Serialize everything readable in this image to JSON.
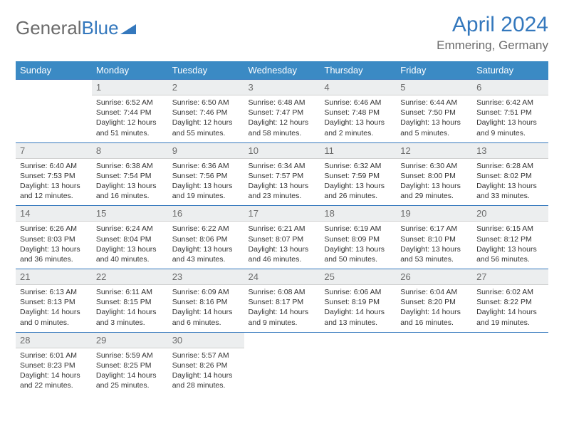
{
  "logo": {
    "text1": "General",
    "text2": "Blue"
  },
  "title": "April 2024",
  "location": "Emmering, Germany",
  "colors": {
    "header_bg": "#3b8ac4",
    "accent": "#3478bd",
    "daynum_bg": "#eceeef",
    "text_gray": "#6b6b6b"
  },
  "weekdays": [
    "Sunday",
    "Monday",
    "Tuesday",
    "Wednesday",
    "Thursday",
    "Friday",
    "Saturday"
  ],
  "weeks": [
    {
      "nums": [
        "",
        "1",
        "2",
        "3",
        "4",
        "5",
        "6"
      ],
      "cells": [
        null,
        {
          "sr": "Sunrise: 6:52 AM",
          "ss": "Sunset: 7:44 PM",
          "d1": "Daylight: 12 hours",
          "d2": "and 51 minutes."
        },
        {
          "sr": "Sunrise: 6:50 AM",
          "ss": "Sunset: 7:46 PM",
          "d1": "Daylight: 12 hours",
          "d2": "and 55 minutes."
        },
        {
          "sr": "Sunrise: 6:48 AM",
          "ss": "Sunset: 7:47 PM",
          "d1": "Daylight: 12 hours",
          "d2": "and 58 minutes."
        },
        {
          "sr": "Sunrise: 6:46 AM",
          "ss": "Sunset: 7:48 PM",
          "d1": "Daylight: 13 hours",
          "d2": "and 2 minutes."
        },
        {
          "sr": "Sunrise: 6:44 AM",
          "ss": "Sunset: 7:50 PM",
          "d1": "Daylight: 13 hours",
          "d2": "and 5 minutes."
        },
        {
          "sr": "Sunrise: 6:42 AM",
          "ss": "Sunset: 7:51 PM",
          "d1": "Daylight: 13 hours",
          "d2": "and 9 minutes."
        }
      ]
    },
    {
      "nums": [
        "7",
        "8",
        "9",
        "10",
        "11",
        "12",
        "13"
      ],
      "cells": [
        {
          "sr": "Sunrise: 6:40 AM",
          "ss": "Sunset: 7:53 PM",
          "d1": "Daylight: 13 hours",
          "d2": "and 12 minutes."
        },
        {
          "sr": "Sunrise: 6:38 AM",
          "ss": "Sunset: 7:54 PM",
          "d1": "Daylight: 13 hours",
          "d2": "and 16 minutes."
        },
        {
          "sr": "Sunrise: 6:36 AM",
          "ss": "Sunset: 7:56 PM",
          "d1": "Daylight: 13 hours",
          "d2": "and 19 minutes."
        },
        {
          "sr": "Sunrise: 6:34 AM",
          "ss": "Sunset: 7:57 PM",
          "d1": "Daylight: 13 hours",
          "d2": "and 23 minutes."
        },
        {
          "sr": "Sunrise: 6:32 AM",
          "ss": "Sunset: 7:59 PM",
          "d1": "Daylight: 13 hours",
          "d2": "and 26 minutes."
        },
        {
          "sr": "Sunrise: 6:30 AM",
          "ss": "Sunset: 8:00 PM",
          "d1": "Daylight: 13 hours",
          "d2": "and 29 minutes."
        },
        {
          "sr": "Sunrise: 6:28 AM",
          "ss": "Sunset: 8:02 PM",
          "d1": "Daylight: 13 hours",
          "d2": "and 33 minutes."
        }
      ]
    },
    {
      "nums": [
        "14",
        "15",
        "16",
        "17",
        "18",
        "19",
        "20"
      ],
      "cells": [
        {
          "sr": "Sunrise: 6:26 AM",
          "ss": "Sunset: 8:03 PM",
          "d1": "Daylight: 13 hours",
          "d2": "and 36 minutes."
        },
        {
          "sr": "Sunrise: 6:24 AM",
          "ss": "Sunset: 8:04 PM",
          "d1": "Daylight: 13 hours",
          "d2": "and 40 minutes."
        },
        {
          "sr": "Sunrise: 6:22 AM",
          "ss": "Sunset: 8:06 PM",
          "d1": "Daylight: 13 hours",
          "d2": "and 43 minutes."
        },
        {
          "sr": "Sunrise: 6:21 AM",
          "ss": "Sunset: 8:07 PM",
          "d1": "Daylight: 13 hours",
          "d2": "and 46 minutes."
        },
        {
          "sr": "Sunrise: 6:19 AM",
          "ss": "Sunset: 8:09 PM",
          "d1": "Daylight: 13 hours",
          "d2": "and 50 minutes."
        },
        {
          "sr": "Sunrise: 6:17 AM",
          "ss": "Sunset: 8:10 PM",
          "d1": "Daylight: 13 hours",
          "d2": "and 53 minutes."
        },
        {
          "sr": "Sunrise: 6:15 AM",
          "ss": "Sunset: 8:12 PM",
          "d1": "Daylight: 13 hours",
          "d2": "and 56 minutes."
        }
      ]
    },
    {
      "nums": [
        "21",
        "22",
        "23",
        "24",
        "25",
        "26",
        "27"
      ],
      "cells": [
        {
          "sr": "Sunrise: 6:13 AM",
          "ss": "Sunset: 8:13 PM",
          "d1": "Daylight: 14 hours",
          "d2": "and 0 minutes."
        },
        {
          "sr": "Sunrise: 6:11 AM",
          "ss": "Sunset: 8:15 PM",
          "d1": "Daylight: 14 hours",
          "d2": "and 3 minutes."
        },
        {
          "sr": "Sunrise: 6:09 AM",
          "ss": "Sunset: 8:16 PM",
          "d1": "Daylight: 14 hours",
          "d2": "and 6 minutes."
        },
        {
          "sr": "Sunrise: 6:08 AM",
          "ss": "Sunset: 8:17 PM",
          "d1": "Daylight: 14 hours",
          "d2": "and 9 minutes."
        },
        {
          "sr": "Sunrise: 6:06 AM",
          "ss": "Sunset: 8:19 PM",
          "d1": "Daylight: 14 hours",
          "d2": "and 13 minutes."
        },
        {
          "sr": "Sunrise: 6:04 AM",
          "ss": "Sunset: 8:20 PM",
          "d1": "Daylight: 14 hours",
          "d2": "and 16 minutes."
        },
        {
          "sr": "Sunrise: 6:02 AM",
          "ss": "Sunset: 8:22 PM",
          "d1": "Daylight: 14 hours",
          "d2": "and 19 minutes."
        }
      ]
    },
    {
      "nums": [
        "28",
        "29",
        "30",
        "",
        "",
        "",
        ""
      ],
      "cells": [
        {
          "sr": "Sunrise: 6:01 AM",
          "ss": "Sunset: 8:23 PM",
          "d1": "Daylight: 14 hours",
          "d2": "and 22 minutes."
        },
        {
          "sr": "Sunrise: 5:59 AM",
          "ss": "Sunset: 8:25 PM",
          "d1": "Daylight: 14 hours",
          "d2": "and 25 minutes."
        },
        {
          "sr": "Sunrise: 5:57 AM",
          "ss": "Sunset: 8:26 PM",
          "d1": "Daylight: 14 hours",
          "d2": "and 28 minutes."
        },
        null,
        null,
        null,
        null
      ]
    }
  ]
}
